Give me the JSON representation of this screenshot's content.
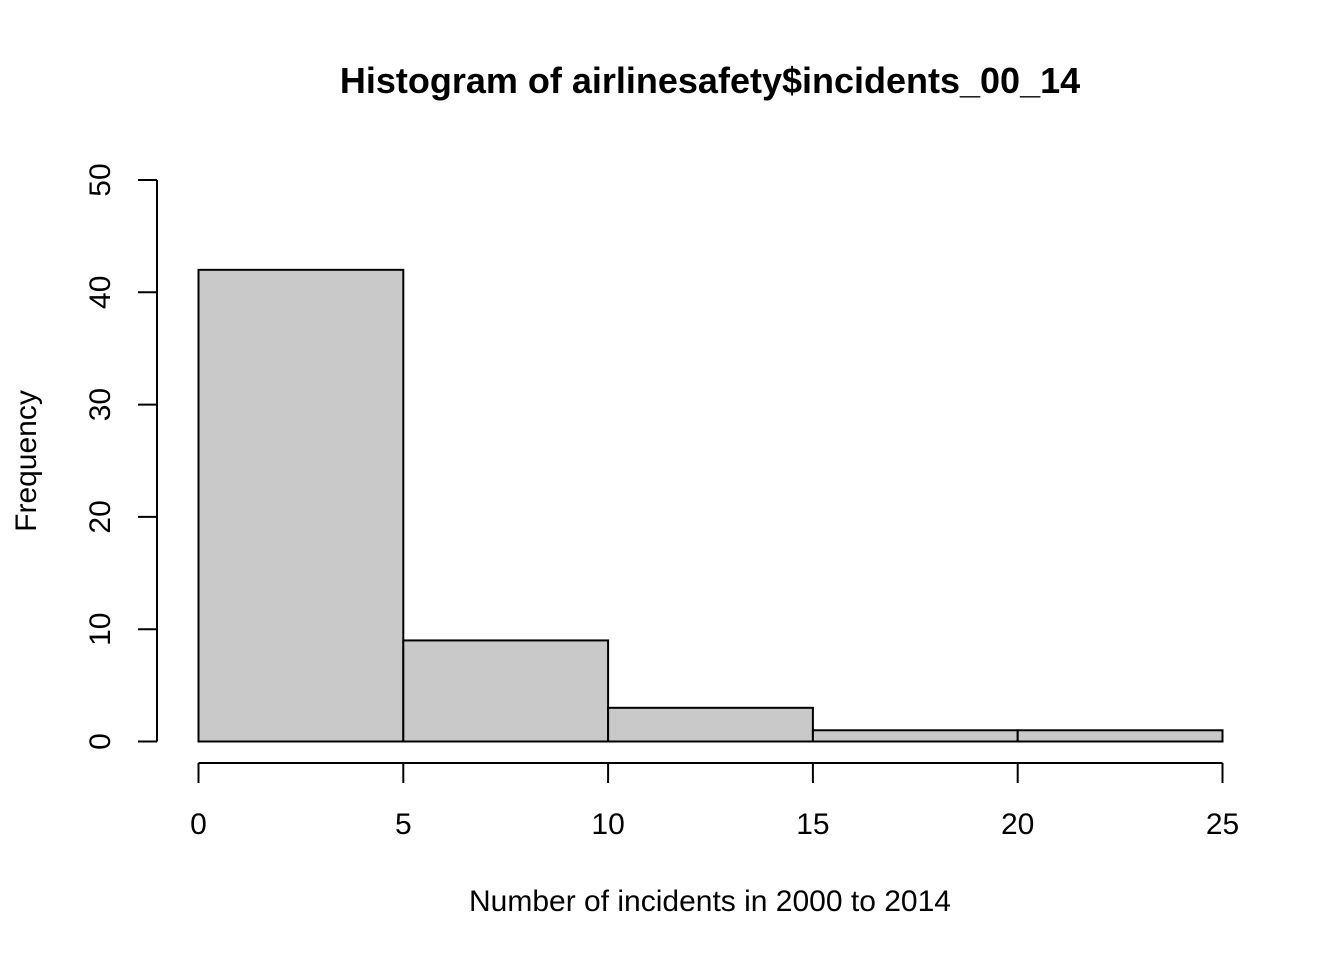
{
  "chart_data": {
    "type": "bar",
    "title": "Histogram of airlinesafety$incidents_00_14",
    "xlabel": "Number of incidents in 2000 to 2014",
    "ylabel": "Frequency",
    "bins": [
      {
        "from": 0,
        "to": 5,
        "count": 42
      },
      {
        "from": 5,
        "to": 10,
        "count": 9
      },
      {
        "from": 10,
        "to": 15,
        "count": 3
      },
      {
        "from": 15,
        "to": 20,
        "count": 1
      },
      {
        "from": 20,
        "to": 25,
        "count": 1
      }
    ],
    "xlim": [
      0,
      25
    ],
    "ylim": [
      0,
      50
    ],
    "x_ticks": [
      0,
      5,
      10,
      15,
      20,
      25
    ],
    "y_ticks": [
      0,
      10,
      20,
      30,
      40,
      50
    ],
    "bar_color": "#c9c9c9",
    "grid": false
  }
}
